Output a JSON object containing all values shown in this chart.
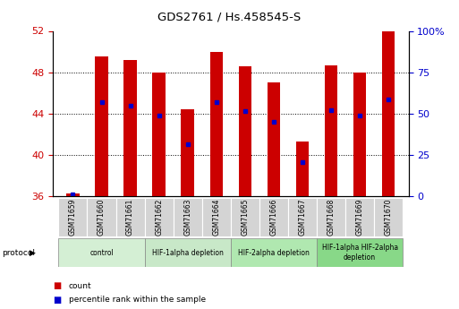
{
  "title": "GDS2761 / Hs.458545-S",
  "samples": [
    "GSM71659",
    "GSM71660",
    "GSM71661",
    "GSM71662",
    "GSM71663",
    "GSM71664",
    "GSM71665",
    "GSM71666",
    "GSM71667",
    "GSM71668",
    "GSM71669",
    "GSM71670"
  ],
  "count_values": [
    36.3,
    49.5,
    49.2,
    48.0,
    44.4,
    50.0,
    48.6,
    47.0,
    41.3,
    48.7,
    48.0,
    52.0
  ],
  "percentile_values": [
    36.2,
    45.1,
    44.8,
    43.8,
    41.0,
    45.1,
    44.2,
    43.2,
    39.3,
    44.3,
    43.8,
    45.4
  ],
  "ylim_left": [
    36,
    52
  ],
  "yticks_left": [
    36,
    40,
    44,
    48,
    52
  ],
  "ylim_right": [
    0,
    100
  ],
  "yticks_right": [
    0,
    25,
    50,
    75,
    100
  ],
  "bar_color": "#cc0000",
  "dot_color": "#0000cc",
  "bar_width": 0.45,
  "protocol_groups": [
    {
      "label": "control",
      "start": 0,
      "end": 2,
      "color": "#d4efd4"
    },
    {
      "label": "HIF-1alpha depletion",
      "start": 3,
      "end": 5,
      "color": "#c8e8c8"
    },
    {
      "label": "HIF-2alpha depletion",
      "start": 6,
      "end": 8,
      "color": "#b0e8b0"
    },
    {
      "label": "HIF-1alpha HIF-2alpha\ndepletion",
      "start": 9,
      "end": 11,
      "color": "#88d888"
    }
  ],
  "tick_color_left": "#cc0000",
  "tick_color_right": "#0000cc",
  "bg_color": "#ffffff",
  "plot_bg_color": "#ffffff",
  "figsize": [
    5.13,
    3.45
  ],
  "dpi": 100
}
